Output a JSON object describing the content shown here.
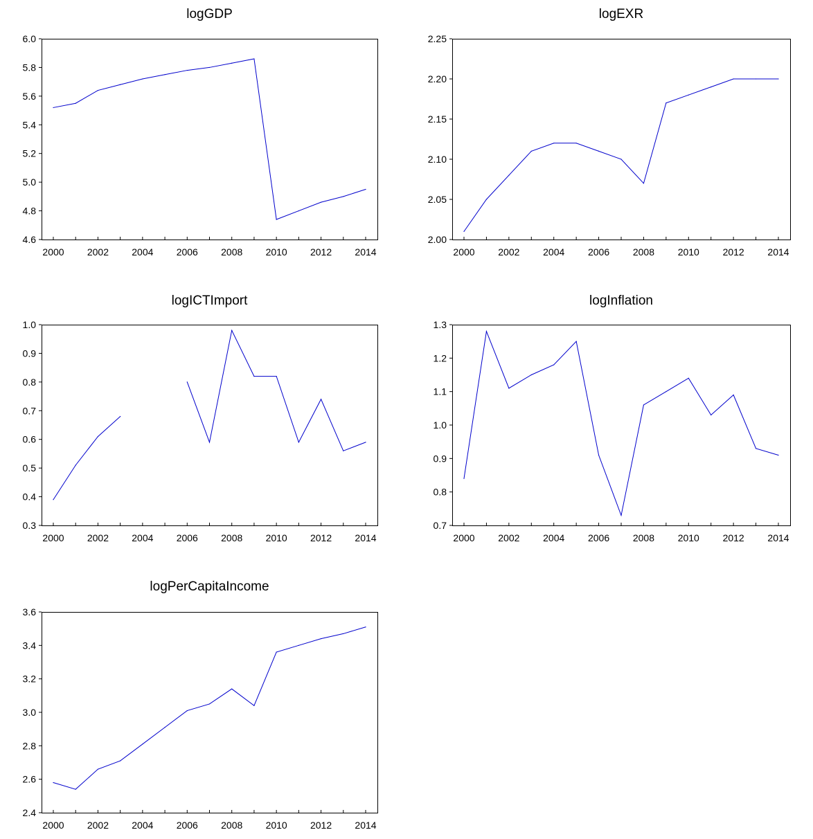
{
  "chart_data": [
    {
      "type": "line",
      "title": "logGDP",
      "x": [
        2000,
        2001,
        2002,
        2003,
        2004,
        2005,
        2006,
        2007,
        2008,
        2009,
        2010,
        2011,
        2012,
        2013,
        2014
      ],
      "values": [
        5.52,
        5.55,
        5.64,
        5.68,
        5.72,
        5.75,
        5.78,
        5.8,
        5.83,
        5.86,
        4.74,
        4.8,
        4.86,
        4.9,
        4.95
      ],
      "ylim": [
        4.6,
        6.0
      ],
      "yticks": [
        "4.6",
        "4.8",
        "5.0",
        "5.2",
        "5.4",
        "5.6",
        "5.8",
        "6.0"
      ],
      "xticks": [
        "2000",
        "2002",
        "2004",
        "2006",
        "2008",
        "2010",
        "2012",
        "2014"
      ],
      "color": "#0000cc"
    },
    {
      "type": "line",
      "title": "logEXR",
      "x": [
        2000,
        2001,
        2002,
        2003,
        2004,
        2005,
        2006,
        2007,
        2008,
        2009,
        2010,
        2011,
        2012,
        2013,
        2014
      ],
      "values": [
        2.01,
        2.05,
        2.08,
        2.11,
        2.12,
        2.12,
        2.11,
        2.1,
        2.07,
        2.17,
        2.18,
        2.19,
        2.2,
        2.2,
        2.2
      ],
      "ylim": [
        2.0,
        2.25
      ],
      "yticks": [
        "2.00",
        "2.05",
        "2.10",
        "2.15",
        "2.20",
        "2.25"
      ],
      "xticks": [
        "2000",
        "2002",
        "2004",
        "2006",
        "2008",
        "2010",
        "2012",
        "2014"
      ],
      "color": "#0000cc"
    },
    {
      "type": "line",
      "title": "logICTImport",
      "x": [
        2000,
        2001,
        2002,
        2003,
        2004,
        2005,
        2006,
        2007,
        2008,
        2009,
        2010,
        2011,
        2012,
        2013,
        2014
      ],
      "values": [
        0.39,
        0.51,
        0.61,
        0.68,
        null,
        null,
        0.8,
        0.59,
        0.98,
        0.82,
        0.82,
        0.59,
        0.74,
        0.56,
        0.59
      ],
      "ylim": [
        0.3,
        1.0
      ],
      "yticks": [
        "0.3",
        "0.4",
        "0.5",
        "0.6",
        "0.7",
        "0.8",
        "0.9",
        "1.0"
      ],
      "xticks": [
        "2000",
        "2002",
        "2004",
        "2006",
        "2008",
        "2010",
        "2012",
        "2014"
      ],
      "color": "#0000cc"
    },
    {
      "type": "line",
      "title": "logInflation",
      "x": [
        2000,
        2001,
        2002,
        2003,
        2004,
        2005,
        2006,
        2007,
        2008,
        2009,
        2010,
        2011,
        2012,
        2013,
        2014
      ],
      "values": [
        0.84,
        1.28,
        1.11,
        1.15,
        1.18,
        1.25,
        0.91,
        0.73,
        1.06,
        1.1,
        1.14,
        1.03,
        1.09,
        0.93,
        0.91
      ],
      "ylim": [
        0.7,
        1.3
      ],
      "yticks": [
        "0.7",
        "0.8",
        "0.9",
        "1.0",
        "1.1",
        "1.2",
        "1.3"
      ],
      "xticks": [
        "2000",
        "2002",
        "2004",
        "2006",
        "2008",
        "2010",
        "2012",
        "2014"
      ],
      "color": "#0000cc"
    },
    {
      "type": "line",
      "title": "logPerCapitaIncome",
      "x": [
        2000,
        2001,
        2002,
        2003,
        2004,
        2005,
        2006,
        2007,
        2008,
        2009,
        2010,
        2011,
        2012,
        2013,
        2014
      ],
      "values": [
        2.58,
        2.54,
        2.66,
        2.71,
        2.81,
        2.91,
        3.01,
        3.05,
        3.14,
        3.04,
        3.36,
        3.4,
        3.44,
        3.47,
        3.51
      ],
      "ylim": [
        2.4,
        3.6
      ],
      "yticks": [
        "2.4",
        "2.6",
        "2.8",
        "3.0",
        "3.2",
        "3.4",
        "3.6"
      ],
      "xticks": [
        "2000",
        "2002",
        "2004",
        "2006",
        "2008",
        "2010",
        "2012",
        "2014"
      ],
      "color": "#0000cc"
    }
  ]
}
